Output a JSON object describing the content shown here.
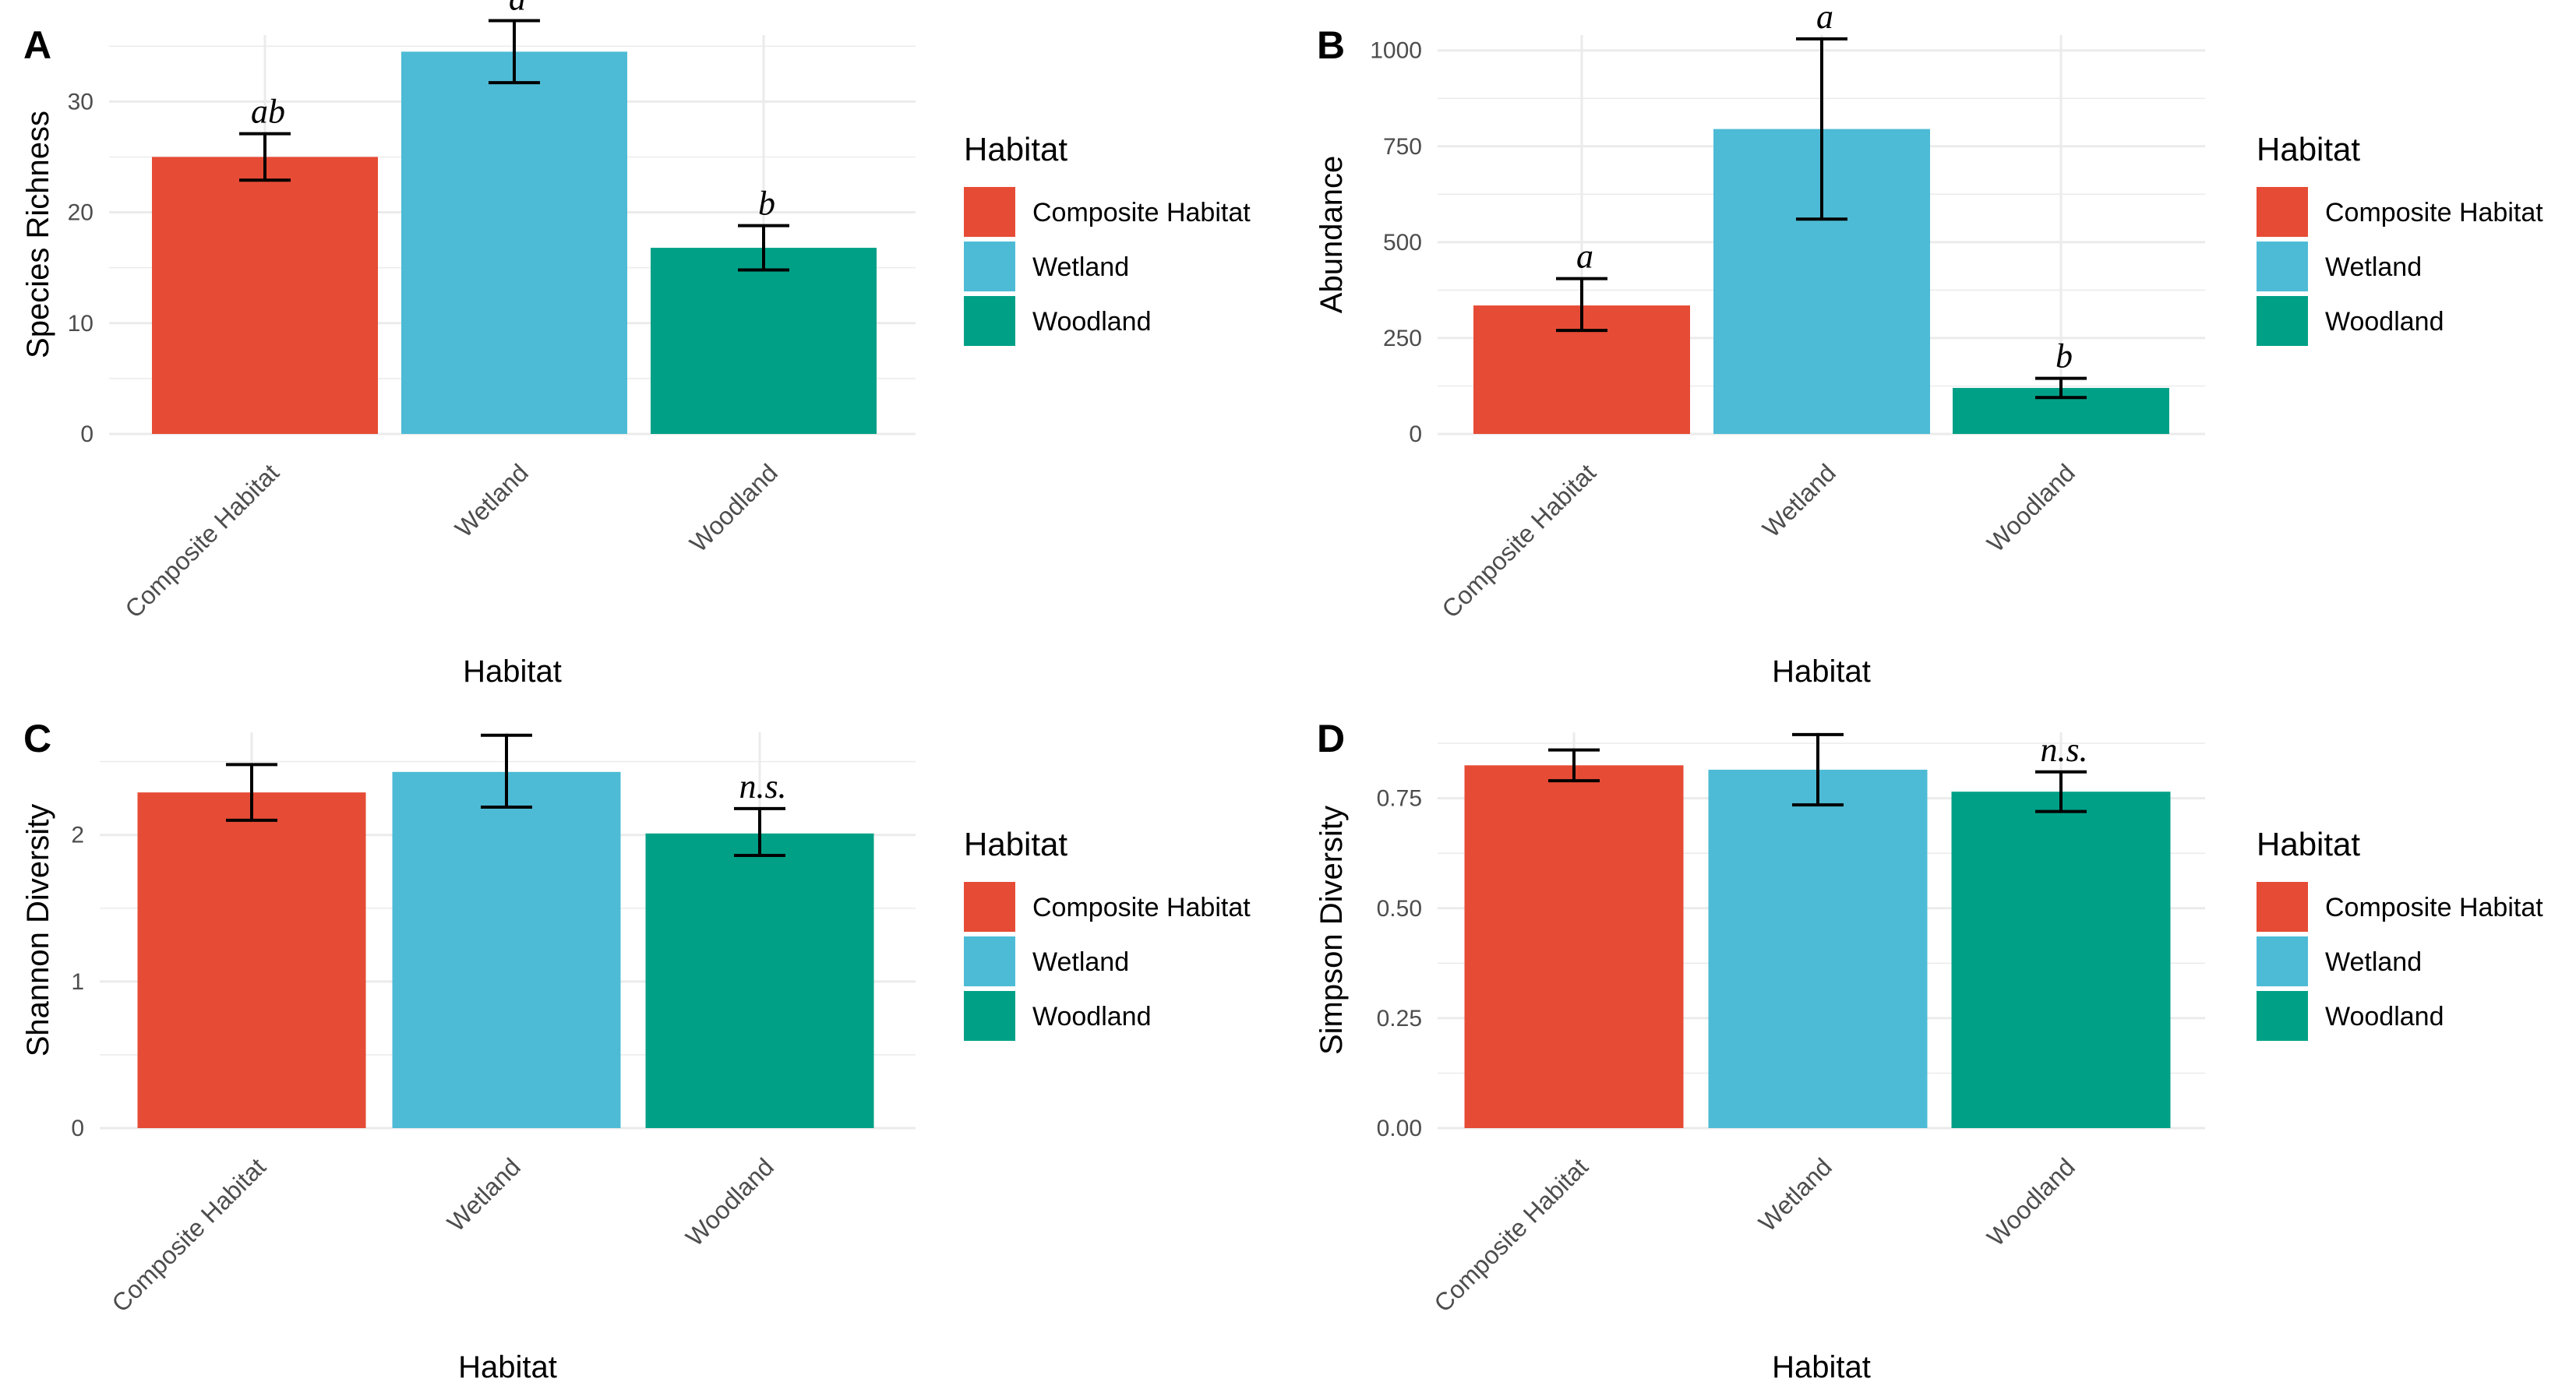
{
  "chart_data": [
    {
      "panel": "A",
      "type": "bar",
      "categories": [
        "Composite Habitat",
        "Wetland",
        "Woodland"
      ],
      "values": [
        25,
        34.5,
        16.8
      ],
      "errors": [
        [
          22.9,
          27.1
        ],
        [
          31.7,
          37.3
        ],
        [
          14.8,
          18.8
        ]
      ],
      "sig_labels": [
        "ab",
        "a",
        "b"
      ],
      "xlabel": "Habitat",
      "ylabel": "Species Richness",
      "ylim": [
        0,
        36
      ],
      "y_ticks": [
        0,
        10,
        20,
        30
      ],
      "y_tick_labels": [
        "0",
        "10",
        "20",
        "30"
      ]
    },
    {
      "panel": "B",
      "type": "bar",
      "categories": [
        "Composite Habitat",
        "Wetland",
        "Woodland"
      ],
      "values": [
        335,
        795,
        120
      ],
      "errors": [
        [
          270,
          405
        ],
        [
          560,
          1030
        ],
        [
          95,
          145
        ]
      ],
      "sig_labels": [
        "a",
        "a",
        "b"
      ],
      "xlabel": "Habitat",
      "ylabel": "Abundance",
      "ylim": [
        0,
        1040
      ],
      "y_ticks": [
        0,
        250,
        500,
        750,
        1000
      ],
      "y_tick_labels": [
        "0",
        "250",
        "500",
        "750",
        "1000"
      ]
    },
    {
      "panel": "C",
      "type": "bar",
      "categories": [
        "Composite Habitat",
        "Wetland",
        "Woodland"
      ],
      "values": [
        2.29,
        2.43,
        2.01
      ],
      "errors": [
        [
          2.1,
          2.48
        ],
        [
          2.19,
          2.68
        ],
        [
          1.86,
          2.18
        ]
      ],
      "sig_labels": [
        "",
        "",
        "n.s."
      ],
      "xlabel": "Habitat",
      "ylabel": "Shannon Diversity",
      "ylim": [
        0,
        2.7
      ],
      "y_ticks": [
        0,
        1,
        2
      ],
      "y_tick_labels": [
        "0",
        "1",
        "2"
      ]
    },
    {
      "panel": "D",
      "type": "bar",
      "categories": [
        "Composite Habitat",
        "Wetland",
        "Woodland"
      ],
      "values": [
        0.825,
        0.815,
        0.765
      ],
      "errors": [
        [
          0.79,
          0.86
        ],
        [
          0.735,
          0.895
        ],
        [
          0.72,
          0.81
        ]
      ],
      "sig_labels": [
        "",
        "",
        "n.s."
      ],
      "xlabel": "Habitat",
      "ylabel": "Simpson Diversity",
      "ylim": [
        0,
        0.9
      ],
      "y_ticks": [
        0,
        0.25,
        0.5,
        0.75
      ],
      "y_tick_labels": [
        "0.00",
        "0.25",
        "0.50",
        "0.75"
      ]
    }
  ],
  "legend": {
    "title": "Habitat",
    "entries": [
      "Composite Habitat",
      "Wetland",
      "Woodland"
    ]
  },
  "colors": {
    "Composite Habitat": "#E64B35",
    "Wetland": "#4DBBD5",
    "Woodland": "#00A087",
    "grid": "#ebebeb",
    "errorbar": "#000000"
  }
}
